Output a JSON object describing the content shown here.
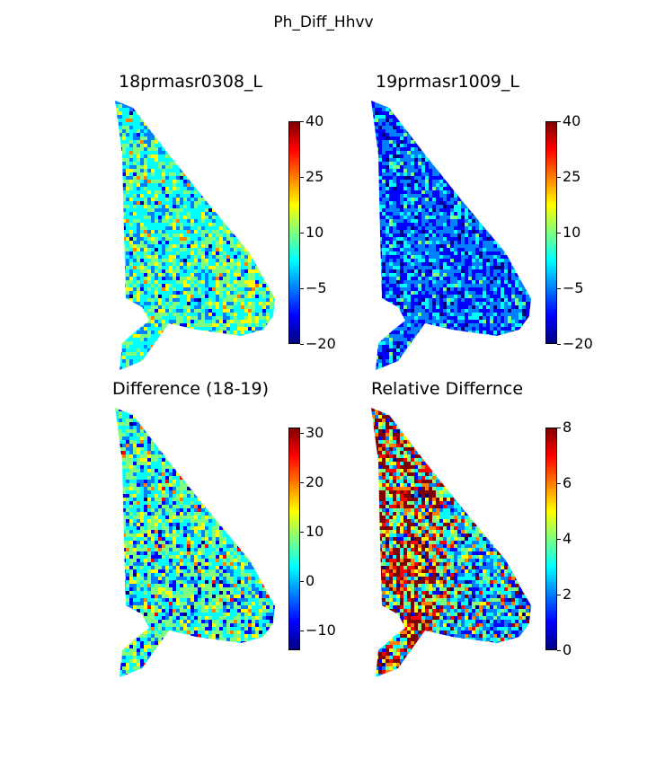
{
  "figure": {
    "suptitle": "Ph_Diff_Hhvv"
  },
  "colormap": {
    "name": "jet",
    "stops": [
      "#00007f",
      "#0000ff",
      "#007fff",
      "#00ffff",
      "#7fff7f",
      "#ffff00",
      "#ff7f00",
      "#ff0000",
      "#7f0000"
    ]
  },
  "chart_data": [
    {
      "type": "heatmap",
      "title": "18prmasr0308_L",
      "colorbar": {
        "range": [
          -20,
          40
        ],
        "ticks": [
          "40",
          "25",
          "10",
          "−5",
          "−20"
        ]
      }
    },
    {
      "type": "heatmap",
      "title": "19prmasr1009_L",
      "colorbar": {
        "range": [
          -20,
          40
        ],
        "ticks": [
          "40",
          "25",
          "10",
          "−5",
          "−20"
        ]
      }
    },
    {
      "type": "heatmap",
      "title": "Difference (18-19)",
      "colorbar": {
        "range": [
          -14,
          31
        ],
        "ticks": [
          "30",
          "20",
          "10",
          "0",
          "−10"
        ]
      }
    },
    {
      "type": "heatmap",
      "title": "Relative Differnce",
      "colorbar": {
        "range": [
          0,
          8
        ],
        "ticks": [
          "8",
          "6",
          "4",
          "2",
          "0"
        ]
      }
    }
  ]
}
